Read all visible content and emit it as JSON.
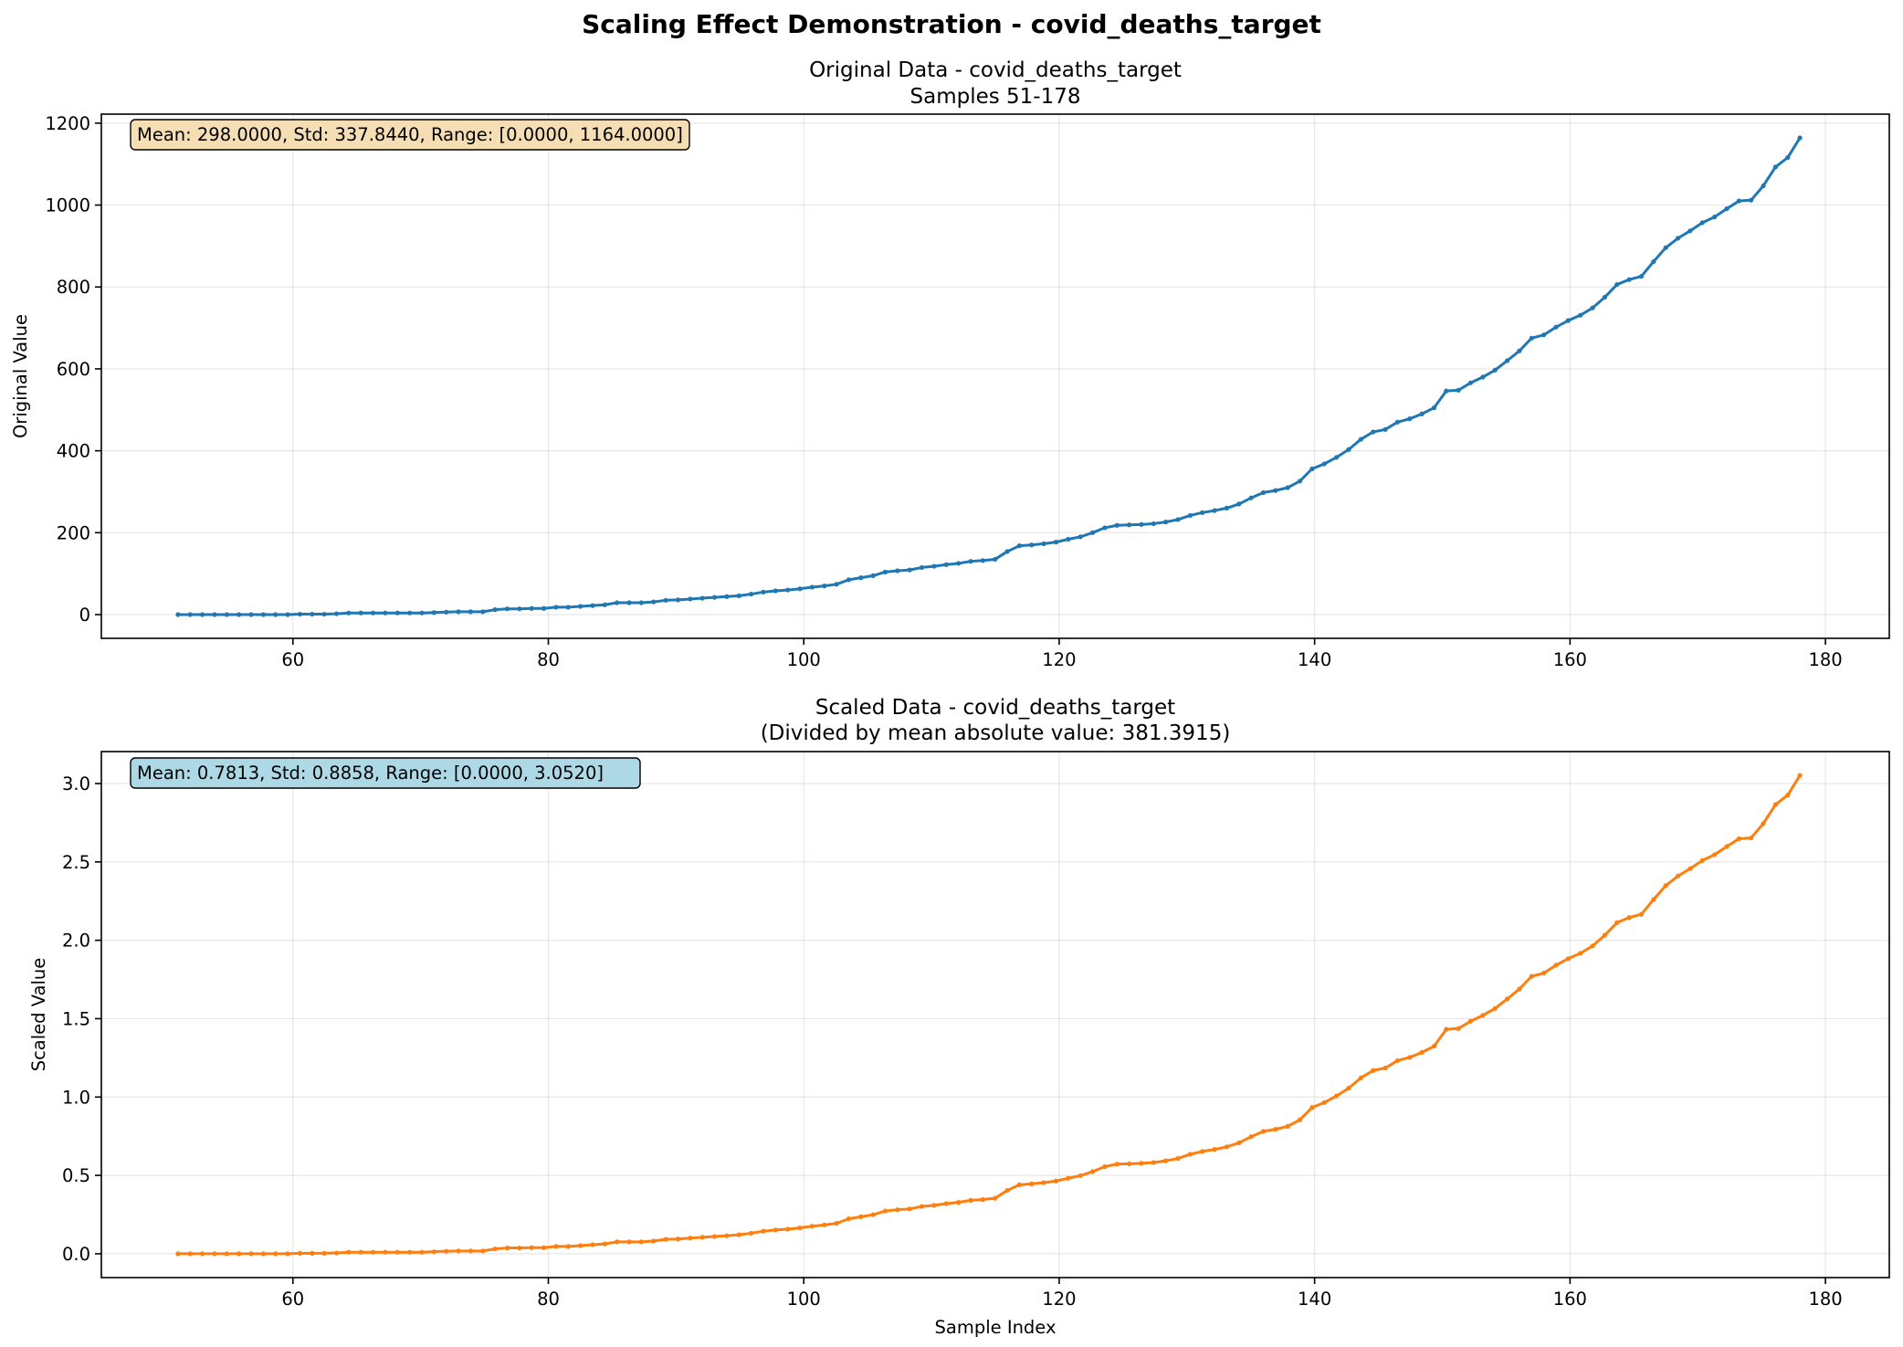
{
  "figure": {
    "title": "Scaling Effect Demonstration - covid_deaths_target"
  },
  "chart_data": [
    {
      "type": "line",
      "title": "Original Data - covid_deaths_target",
      "subtitle": "Samples 51-178",
      "xlabel": "",
      "ylabel": "Original Value",
      "xlim": [
        45,
        185
      ],
      "ylim": [
        -58,
        1222
      ],
      "xticks": [
        60,
        80,
        100,
        120,
        140,
        160,
        180
      ],
      "yticks": [
        0,
        200,
        400,
        600,
        800,
        1000,
        1200
      ],
      "grid": true,
      "stats_box": {
        "text": "Mean: 298.0000, Std: 337.8440, Range: [0.0000, 1164.0000]",
        "color": "#f5deb3",
        "placement": "top-left"
      },
      "series": [
        {
          "color": "#1f77b4",
          "x_start": 51,
          "x_end": 178,
          "values": [
            0,
            0,
            0,
            0,
            0,
            0,
            0,
            0,
            0,
            0,
            1,
            1,
            1,
            2,
            4,
            4,
            4,
            4,
            4,
            4,
            4,
            5,
            6,
            7,
            7,
            7,
            12,
            14,
            14,
            15,
            15,
            18,
            18,
            20,
            22,
            24,
            29,
            29,
            29,
            31,
            35,
            36,
            38,
            40,
            42,
            44,
            46,
            50,
            55,
            58,
            60,
            63,
            67,
            70,
            74,
            85,
            90,
            95,
            104,
            107,
            109,
            115,
            118,
            122,
            125,
            130,
            132,
            135,
            154,
            168,
            170,
            173,
            177,
            184,
            190,
            200,
            212,
            218,
            219,
            220,
            222,
            226,
            232,
            242,
            249,
            254,
            260,
            270,
            285,
            298,
            303,
            310,
            326,
            356,
            368,
            384,
            403,
            428,
            446,
            452,
            470,
            478,
            490,
            505,
            546,
            548,
            566,
            580,
            597,
            620,
            644,
            675,
            683,
            702,
            718,
            731,
            749,
            775,
            806,
            818,
            826,
            862,
            896,
            919,
            937,
            957,
            971,
            991,
            1010,
            1012,
            1047,
            1093,
            1116,
            1164
          ]
        }
      ]
    },
    {
      "type": "line",
      "title": "Scaled Data - covid_deaths_target",
      "subtitle": "(Divided by mean absolute value: 381.3915)",
      "xlabel": "Sample Index",
      "ylabel": "Scaled Value",
      "xlim": [
        45,
        185
      ],
      "ylim": [
        -0.152,
        3.204
      ],
      "xticks": [
        60,
        80,
        100,
        120,
        140,
        160,
        180
      ],
      "yticks": [
        0.0,
        0.5,
        1.0,
        1.5,
        2.0,
        2.5,
        3.0
      ],
      "grid": true,
      "stats_box": {
        "text": "Mean: 0.7813, Std: 0.8858, Range: [0.0000, 3.0520]",
        "color": "#add8e6",
        "placement": "top-left"
      },
      "series": [
        {
          "color": "#ff7f0e",
          "x_start": 51,
          "x_end": 178,
          "values": [
            0,
            0,
            0,
            0,
            0,
            0,
            0,
            0,
            0,
            0,
            0.003,
            0.003,
            0.003,
            0.005,
            0.01,
            0.01,
            0.01,
            0.01,
            0.01,
            0.01,
            0.01,
            0.013,
            0.016,
            0.018,
            0.018,
            0.018,
            0.031,
            0.037,
            0.037,
            0.039,
            0.039,
            0.047,
            0.047,
            0.052,
            0.058,
            0.063,
            0.076,
            0.076,
            0.076,
            0.081,
            0.092,
            0.094,
            0.1,
            0.105,
            0.11,
            0.115,
            0.121,
            0.131,
            0.144,
            0.152,
            0.157,
            0.165,
            0.176,
            0.184,
            0.194,
            0.223,
            0.236,
            0.249,
            0.273,
            0.281,
            0.286,
            0.302,
            0.309,
            0.32,
            0.328,
            0.341,
            0.346,
            0.354,
            0.404,
            0.44,
            0.446,
            0.454,
            0.464,
            0.482,
            0.498,
            0.524,
            0.556,
            0.572,
            0.574,
            0.577,
            0.582,
            0.593,
            0.608,
            0.635,
            0.653,
            0.666,
            0.682,
            0.708,
            0.747,
            0.781,
            0.794,
            0.813,
            0.855,
            0.933,
            0.965,
            1.007,
            1.057,
            1.122,
            1.169,
            1.185,
            1.232,
            1.253,
            1.285,
            1.324,
            1.432,
            1.437,
            1.484,
            1.521,
            1.565,
            1.626,
            1.689,
            1.77,
            1.791,
            1.841,
            1.883,
            1.917,
            1.964,
            2.032,
            2.113,
            2.145,
            2.166,
            2.26,
            2.349,
            2.41,
            2.457,
            2.509,
            2.546,
            2.598,
            2.648,
            2.653,
            2.745,
            2.866,
            2.926,
            3.052
          ]
        }
      ]
    }
  ]
}
